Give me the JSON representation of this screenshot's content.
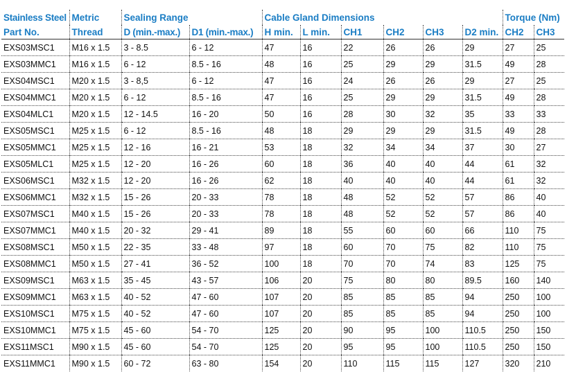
{
  "headers": {
    "group": [
      "Stainless Steel",
      "Metric",
      "Sealing Range",
      "Cable Gland Dimensions",
      "Torque (Nm)"
    ],
    "columns": [
      "Part No.",
      "Thread",
      "D (min.-max.)",
      "D1 (min.-max.)",
      "H min.",
      "L min.",
      "CH1",
      "CH2",
      "CH3",
      "D2 min.",
      "CH2",
      "CH3"
    ]
  },
  "rows": [
    [
      "EXS03MSC1",
      "M16 x 1.5",
      "3 - 8.5",
      "6 - 12",
      "47",
      "16",
      "22",
      "26",
      "26",
      "29",
      "27",
      "25"
    ],
    [
      "EXS03MMC1",
      "M16 x 1.5",
      "6 - 12",
      "8.5 - 16",
      "48",
      "16",
      "25",
      "29",
      "29",
      "31.5",
      "49",
      "28"
    ],
    [
      "EXS04MSC1",
      "M20 x 1.5",
      "3 - 8,5",
      "6 - 12",
      "47",
      "16",
      "24",
      "26",
      "26",
      "29",
      "27",
      "25"
    ],
    [
      "EXS04MMC1",
      "M20 x 1.5",
      "6 - 12",
      "8.5 - 16",
      "47",
      "16",
      "25",
      "29",
      "29",
      "31.5",
      "49",
      "28"
    ],
    [
      "EXS04MLC1",
      "M20 x 1.5",
      "12 - 14.5",
      "16 - 20",
      "50",
      "16",
      "28",
      "30",
      "32",
      "35",
      "33",
      "33"
    ],
    [
      "EXS05MSC1",
      "M25 x 1.5",
      "6 - 12",
      "8.5 - 16",
      "48",
      "18",
      "29",
      "29",
      "29",
      "31.5",
      "49",
      "28"
    ],
    [
      "EXS05MMC1",
      "M25 x 1.5",
      "12 - 16",
      "16 - 21",
      "53",
      "18",
      "32",
      "34",
      "34",
      "37",
      "30",
      "27"
    ],
    [
      "EXS05MLC1",
      "M25 x 1.5",
      "12 - 20",
      "16 - 26",
      "60",
      "18",
      "36",
      "40",
      "40",
      "44",
      "61",
      "32"
    ],
    [
      "EXS06MSC1",
      "M32 x 1.5",
      "12 - 20",
      "16 - 26",
      "62",
      "18",
      "40",
      "40",
      "40",
      "44",
      "61",
      "32"
    ],
    [
      "EXS06MMC1",
      "M32 x 1.5",
      "15 - 26",
      "20 - 33",
      "78",
      "18",
      "48",
      "52",
      "52",
      "57",
      "86",
      "40"
    ],
    [
      "EXS07MSC1",
      "M40 x 1.5",
      "15 - 26",
      "20 - 33",
      "78",
      "18",
      "48",
      "52",
      "52",
      "57",
      "86",
      "40"
    ],
    [
      "EXS07MMC1",
      "M40 x 1.5",
      "20 - 32",
      "29 - 41",
      "89",
      "18",
      "55",
      "60",
      "60",
      "66",
      "110",
      "75"
    ],
    [
      "EXS08MSC1",
      "M50 x 1.5",
      "22 - 35",
      "33 - 48",
      "97",
      "18",
      "60",
      "70",
      "75",
      "82",
      "110",
      "75"
    ],
    [
      "EXS08MMC1",
      "M50 x 1.5",
      "27 - 41",
      "36 - 52",
      "100",
      "18",
      "70",
      "70",
      "74",
      "83",
      "125",
      "75"
    ],
    [
      "EXS09MSC1",
      "M63 x 1.5",
      "35 - 45",
      "43 - 57",
      "106",
      "20",
      "75",
      "80",
      "80",
      "89.5",
      "160",
      "140"
    ],
    [
      "EXS09MMC1",
      "M63 x 1.5",
      "40 - 52",
      "47 - 60",
      "107",
      "20",
      "85",
      "85",
      "85",
      "94",
      "250",
      "100"
    ],
    [
      "EXS10MSC1",
      "M75 x 1.5",
      "40 - 52",
      "47 - 60",
      "107",
      "20",
      "85",
      "85",
      "85",
      "94",
      "250",
      "100"
    ],
    [
      "EXS10MMC1",
      "M75 x 1.5",
      "45 - 60",
      "54 - 70",
      "125",
      "20",
      "90",
      "95",
      "100",
      "110.5",
      "250",
      "150"
    ],
    [
      "EXS11MSC1",
      "M90 x 1.5",
      "45 - 60",
      "54 - 70",
      "125",
      "20",
      "95",
      "95",
      "100",
      "110.5",
      "250",
      "150"
    ],
    [
      "EXS11MMC1",
      "M90 x 1.5",
      "60 - 72",
      "63 - 80",
      "154",
      "20",
      "110",
      "115",
      "115",
      "127",
      "320",
      "210"
    ]
  ]
}
